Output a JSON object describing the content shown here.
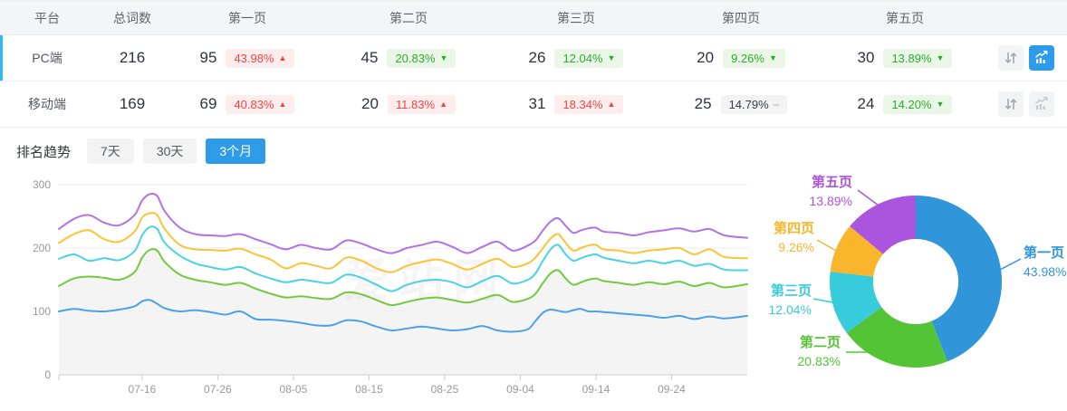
{
  "table": {
    "headers": {
      "platform": "平台",
      "total": "总词数",
      "page1": "第一页",
      "page2": "第二页",
      "page3": "第三页",
      "page4": "第四页",
      "page5": "第五页"
    },
    "rows": [
      {
        "platform": "PC端",
        "total": "216",
        "active": true,
        "pages": [
          {
            "count": "95",
            "pct": "43.98%",
            "dir": "up"
          },
          {
            "count": "45",
            "pct": "20.83%",
            "dir": "down"
          },
          {
            "count": "26",
            "pct": "12.04%",
            "dir": "down"
          },
          {
            "count": "20",
            "pct": "9.26%",
            "dir": "down"
          },
          {
            "count": "30",
            "pct": "13.89%",
            "dir": "down"
          }
        ],
        "actions": {
          "sort_icon": "sort-arrows-icon",
          "trend_icon": "trend-chart-icon",
          "trend_active": true
        }
      },
      {
        "platform": "移动端",
        "total": "169",
        "active": false,
        "pages": [
          {
            "count": "69",
            "pct": "40.83%",
            "dir": "up"
          },
          {
            "count": "20",
            "pct": "11.83%",
            "dir": "up"
          },
          {
            "count": "31",
            "pct": "18.34%",
            "dir": "up"
          },
          {
            "count": "25",
            "pct": "14.79%",
            "dir": "flat"
          },
          {
            "count": "24",
            "pct": "14.20%",
            "dir": "down"
          }
        ],
        "actions": {
          "sort_icon": "sort-arrows-icon",
          "trend_icon": "trend-chart-icon",
          "trend_active": false
        }
      }
    ]
  },
  "trend": {
    "label": "排名趋势",
    "tabs": [
      {
        "label": "7天",
        "active": false
      },
      {
        "label": "30天",
        "active": false
      },
      {
        "label": "3个月",
        "active": true
      }
    ]
  },
  "watermark": "爱站网",
  "colors": {
    "accent_blue": "#2e9be8",
    "row_accent": "#2eb8f7",
    "up_red": "#f04545",
    "up_red_bg": "#fdeded",
    "down_green": "#2fa832",
    "down_green_bg": "#eaf7e6",
    "flat_bg": "#f3f3f3",
    "axis_text": "#999999",
    "grid_line": "#ebebeb",
    "axis_line": "#cccccc",
    "area_fill": "#f4f4f5"
  },
  "chart_data": [
    {
      "type": "line",
      "title": "排名趋势 - 3个月",
      "note": "stacked cumulative keyword counts per page depth, PC端; lines drawn bottom to top",
      "x_count": 92,
      "x_grid": [
        0,
        2,
        4,
        6,
        8,
        10,
        11,
        12,
        13,
        14,
        16,
        18,
        20,
        22,
        24,
        26,
        28,
        30,
        32,
        34,
        36,
        38,
        40,
        42,
        44,
        46,
        48,
        50,
        52,
        54,
        56,
        58,
        60,
        62,
        63,
        64,
        65,
        66,
        67,
        68,
        69,
        70,
        71,
        72,
        74,
        76,
        78,
        80,
        82,
        84,
        86,
        88,
        91
      ],
      "x_ticks": {
        "positions": [
          11,
          21,
          31,
          41,
          51,
          61,
          71,
          81
        ],
        "labels": [
          "07-16",
          "07-26",
          "08-05",
          "08-15",
          "08-25",
          "09-04",
          "09-14",
          "09-24"
        ]
      },
      "ylim": [
        0,
        300
      ],
      "yticks": [
        0,
        100,
        200,
        300
      ],
      "grid": true,
      "legend": "none",
      "series": [
        {
          "name": "第一页",
          "color": "#4da1e8",
          "values": [
            100,
            104,
            101,
            100,
            103,
            108,
            116,
            118,
            112,
            105,
            100,
            102,
            99,
            95,
            100,
            88,
            87,
            85,
            82,
            78,
            78,
            86,
            84,
            76,
            70,
            73,
            76,
            73,
            70,
            72,
            77,
            70,
            68,
            72,
            85,
            98,
            103,
            101,
            99,
            102,
            104,
            100,
            100,
            99,
            97,
            95,
            93,
            90,
            93,
            88,
            92,
            89,
            93
          ]
        },
        {
          "name": "第二页",
          "color": "#74c93e",
          "area_fill": true,
          "values": [
            140,
            152,
            155,
            153,
            150,
            162,
            185,
            197,
            196,
            178,
            158,
            150,
            146,
            142,
            145,
            136,
            128,
            122,
            124,
            121,
            120,
            130,
            127,
            118,
            110,
            115,
            120,
            122,
            118,
            114,
            120,
            126,
            115,
            120,
            128,
            145,
            160,
            165,
            152,
            142,
            146,
            150,
            152,
            148,
            145,
            142,
            146,
            143,
            147,
            140,
            145,
            138,
            143
          ]
        },
        {
          "name": "第三页",
          "color": "#48d3e2",
          "values": [
            183,
            190,
            180,
            184,
            181,
            195,
            220,
            233,
            230,
            208,
            188,
            176,
            170,
            166,
            170,
            160,
            152,
            146,
            150,
            147,
            145,
            158,
            153,
            142,
            132,
            142,
            148,
            150,
            146,
            138,
            148,
            156,
            144,
            150,
            160,
            180,
            198,
            205,
            190,
            180,
            184,
            188,
            190,
            185,
            180,
            176,
            180,
            176,
            180,
            172,
            175,
            166,
            165
          ]
        },
        {
          "name": "第四页",
          "color": "#fbc437",
          "values": [
            208,
            222,
            228,
            214,
            210,
            226,
            248,
            255,
            252,
            230,
            205,
            198,
            197,
            196,
            199,
            190,
            182,
            168,
            176,
            172,
            168,
            185,
            180,
            168,
            162,
            172,
            178,
            182,
            175,
            166,
            175,
            183,
            170,
            176,
            185,
            200,
            215,
            222,
            208,
            196,
            200,
            204,
            205,
            198,
            196,
            192,
            196,
            198,
            200,
            190,
            198,
            186,
            184
          ]
        },
        {
          "name": "第五页",
          "color": "#b272e6",
          "values": [
            230,
            246,
            252,
            240,
            236,
            252,
            275,
            285,
            282,
            258,
            232,
            222,
            220,
            219,
            222,
            214,
            206,
            198,
            205,
            200,
            198,
            212,
            207,
            198,
            192,
            200,
            205,
            210,
            202,
            192,
            202,
            210,
            196,
            204,
            212,
            228,
            242,
            247,
            235,
            224,
            228,
            231,
            232,
            226,
            224,
            220,
            225,
            228,
            231,
            226,
            230,
            220,
            216
          ]
        }
      ]
    },
    {
      "type": "pie",
      "subtype": "donut",
      "title": "页面分布 (PC端)",
      "start": "12-o'clock, clockwise",
      "inner_radius_ratio": 0.49,
      "slices": [
        {
          "label": "第一页",
          "value": 43.98,
          "pct_label": "43.98%",
          "color": "#3095d9"
        },
        {
          "label": "第二页",
          "value": 20.83,
          "pct_label": "20.83%",
          "color": "#54c437"
        },
        {
          "label": "第三页",
          "value": 12.04,
          "pct_label": "12.04%",
          "color": "#38cbdb"
        },
        {
          "label": "第四页",
          "value": 9.26,
          "pct_label": "9.26%",
          "color": "#f9b52c"
        },
        {
          "label": "第五页",
          "value": 13.89,
          "pct_label": "13.89%",
          "color": "#ab54dd"
        }
      ]
    }
  ]
}
